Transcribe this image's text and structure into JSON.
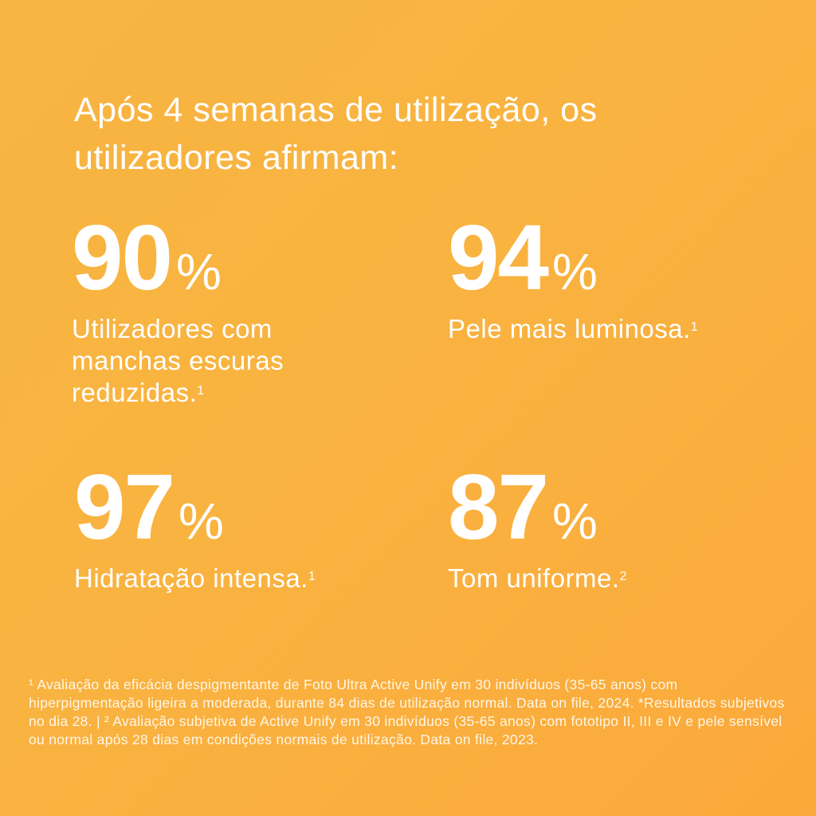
{
  "headline": "Após 4 semanas de utilização, os utilizadores afirmam:",
  "stats": [
    {
      "value": "90",
      "unit": "%",
      "label": "Utilizadores com manchas escuras reduzidas.",
      "ref": "1"
    },
    {
      "value": "94",
      "unit": "%",
      "label": "Pele mais luminosa.",
      "ref": "1"
    },
    {
      "value": "97",
      "unit": "%",
      "label": "Hidratação intensa.",
      "ref": "1"
    },
    {
      "value": "87",
      "unit": "%",
      "label": "Tom uniforme.",
      "ref": "2"
    }
  ],
  "footnote": "¹ Avaliação da eficácia despigmentante de Foto Ultra Active Unify em 30 indivíduos (35-65 anos) com hiperpigmentação ligeira a moderada, durante 84 dias de utilização normal. Data on file, 2024. *Resultados subjetivos no dia 28. | ² Avaliação subjetiva de Active Unify em 30 indivíduos (35-65 anos) com fototipo II, III e IV e pele sensível ou normal após 28 dias em condições normais de utilização. Data on file, 2023.",
  "colors": {
    "background": "#f9b340",
    "text": "#ffffff"
  }
}
